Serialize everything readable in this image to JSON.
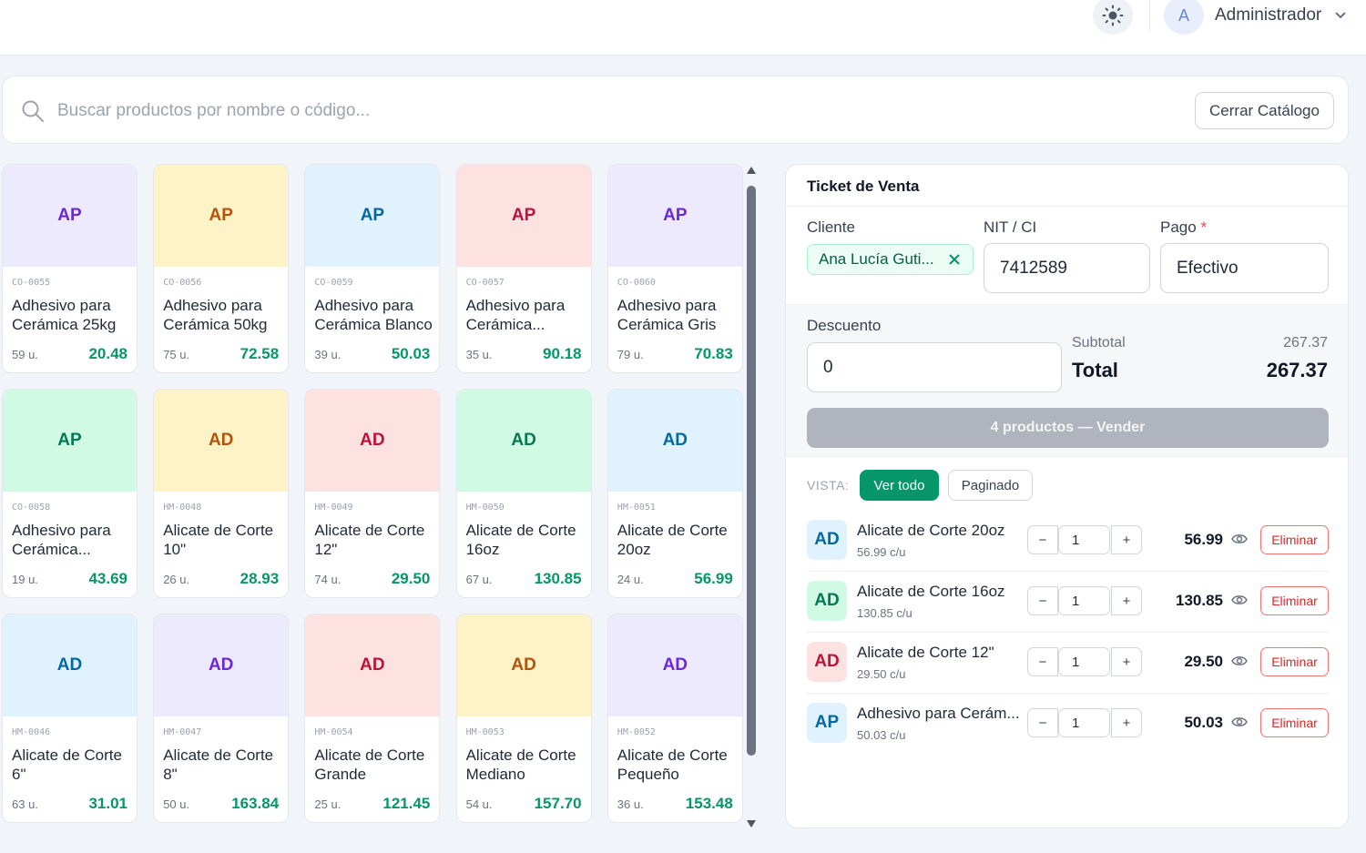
{
  "header": {
    "avatar_letter": "A",
    "user_name": "Administrador"
  },
  "search": {
    "placeholder": "Buscar productos por nombre o código...",
    "value": "",
    "close_label": "Cerrar Catálogo"
  },
  "products": [
    {
      "initials": "AP",
      "code": "CO-0055",
      "name": "Adhesivo para Cerámica 25kg",
      "stock": "59 u.",
      "price": "20.48",
      "bg": "#ede9fe",
      "fg": "#6d28d9"
    },
    {
      "initials": "AP",
      "code": "CO-0056",
      "name": "Adhesivo para Cerámica 50kg",
      "stock": "75 u.",
      "price": "72.58",
      "bg": "#fef3c7",
      "fg": "#b45309"
    },
    {
      "initials": "AP",
      "code": "CO-0059",
      "name": "Adhesivo para Cerámica Blanco",
      "stock": "39 u.",
      "price": "50.03",
      "bg": "#e0f2fe",
      "fg": "#0369a1"
    },
    {
      "initials": "AP",
      "code": "CO-0057",
      "name": "Adhesivo para Cerámica...",
      "stock": "35 u.",
      "price": "90.18",
      "bg": "#fee2e2",
      "fg": "#be123c"
    },
    {
      "initials": "AP",
      "code": "CO-0060",
      "name": "Adhesivo para Cerámica Gris",
      "stock": "79 u.",
      "price": "70.83",
      "bg": "#ede9fe",
      "fg": "#6d28d9"
    },
    {
      "initials": "AP",
      "code": "CO-0058",
      "name": "Adhesivo para Cerámica...",
      "stock": "19 u.",
      "price": "43.69",
      "bg": "#d1fae5",
      "fg": "#047857"
    },
    {
      "initials": "AD",
      "code": "HM-0048",
      "name": "Alicate de Corte 10\"",
      "stock": "26 u.",
      "price": "28.93",
      "bg": "#fef3c7",
      "fg": "#b45309"
    },
    {
      "initials": "AD",
      "code": "HM-0049",
      "name": "Alicate de Corte 12\"",
      "stock": "74 u.",
      "price": "29.50",
      "bg": "#fee2e2",
      "fg": "#be123c"
    },
    {
      "initials": "AD",
      "code": "HM-0050",
      "name": "Alicate de Corte 16oz",
      "stock": "67 u.",
      "price": "130.85",
      "bg": "#d1fae5",
      "fg": "#047857"
    },
    {
      "initials": "AD",
      "code": "HM-0051",
      "name": "Alicate de Corte 20oz",
      "stock": "24 u.",
      "price": "56.99",
      "bg": "#e0f2fe",
      "fg": "#0369a1"
    },
    {
      "initials": "AD",
      "code": "HM-0046",
      "name": "Alicate de Corte 6\"",
      "stock": "63 u.",
      "price": "31.01",
      "bg": "#e0f2fe",
      "fg": "#0369a1"
    },
    {
      "initials": "AD",
      "code": "HM-0047",
      "name": "Alicate de Corte 8\"",
      "stock": "50 u.",
      "price": "163.84",
      "bg": "#ede9fe",
      "fg": "#6d28d9"
    },
    {
      "initials": "AD",
      "code": "HM-0054",
      "name": "Alicate de Corte Grande",
      "stock": "25 u.",
      "price": "121.45",
      "bg": "#fee2e2",
      "fg": "#be123c"
    },
    {
      "initials": "AD",
      "code": "HM-0053",
      "name": "Alicate de Corte Mediano",
      "stock": "54 u.",
      "price": "157.70",
      "bg": "#fef3c7",
      "fg": "#b45309"
    },
    {
      "initials": "AD",
      "code": "HM-0052",
      "name": "Alicate de Corte Pequeño",
      "stock": "36 u.",
      "price": "153.48",
      "bg": "#ede9fe",
      "fg": "#6d28d9"
    }
  ],
  "ticket": {
    "title": "Ticket de Venta",
    "client_label": "Cliente",
    "client_value": "Ana Lucía Guti...",
    "nit_label": "NIT / CI",
    "nit_value": "7412589",
    "payment_label": "Pago",
    "payment_required": "*",
    "payment_value": "Efectivo",
    "discount_label": "Descuento",
    "discount_value": "0",
    "subtotal_label": "Subtotal",
    "subtotal_value": "267.37",
    "total_label": "Total",
    "total_value": "267.37",
    "sell_label": "4 productos — Vender",
    "view_label": "VISTA:",
    "view_all_label": "Ver todo",
    "view_paged_label": "Paginado",
    "delete_label": "Eliminar",
    "lines": [
      {
        "initials": "AD",
        "name": "Alicate de Corte 20oz",
        "unit": "56.99 c/u",
        "qty": "1",
        "total": "56.99",
        "bg": "#e0f2fe",
        "fg": "#0369a1"
      },
      {
        "initials": "AD",
        "name": "Alicate de Corte 16oz",
        "unit": "130.85 c/u",
        "qty": "1",
        "total": "130.85",
        "bg": "#d1fae5",
        "fg": "#047857"
      },
      {
        "initials": "AD",
        "name": "Alicate de Corte 12\"",
        "unit": "29.50 c/u",
        "qty": "1",
        "total": "29.50",
        "bg": "#fee2e2",
        "fg": "#be123c"
      },
      {
        "initials": "AP",
        "name": "Adhesivo para Cerám...",
        "unit": "50.03 c/u",
        "qty": "1",
        "total": "50.03",
        "bg": "#e0f2fe",
        "fg": "#0369a1"
      }
    ]
  }
}
